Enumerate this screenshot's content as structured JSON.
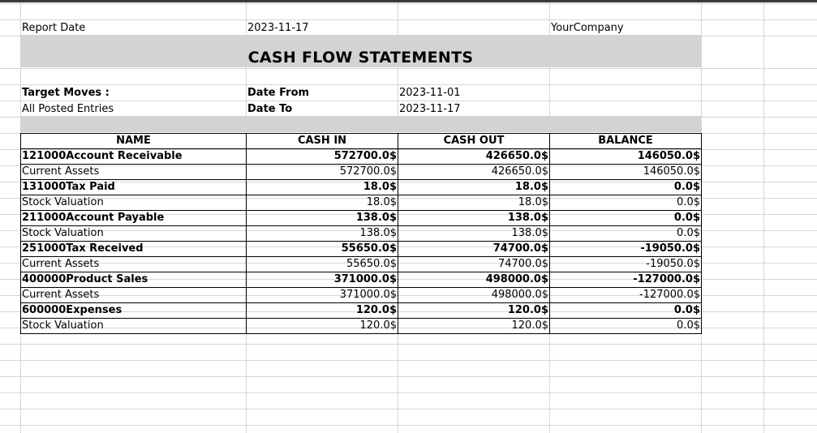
{
  "header": {
    "report_date_label": "Report Date",
    "report_date_value": "2023-11-17",
    "company": "YourCompany",
    "title": "CASH FLOW STATEMENTS",
    "target_moves_label": "Target Moves :",
    "target_moves_value": "All Posted Entries",
    "date_from_label": "Date From",
    "date_from_value": "2023-11-01",
    "date_to_label": "Date To",
    "date_to_value": "2023-11-17"
  },
  "table": {
    "columns": [
      "NAME",
      "CASH IN",
      "CASH OUT",
      "BALANCE"
    ],
    "rows": [
      {
        "name": "121000Account Receivable",
        "cash_in": "572700.0$",
        "cash_out": "426650.0$",
        "balance": "146050.0$",
        "bold": true
      },
      {
        "name": "Current Assets",
        "cash_in": "572700.0$",
        "cash_out": "426650.0$",
        "balance": "146050.0$",
        "bold": false
      },
      {
        "name": "131000Tax Paid",
        "cash_in": "18.0$",
        "cash_out": "18.0$",
        "balance": "0.0$",
        "bold": true
      },
      {
        "name": "Stock Valuation",
        "cash_in": "18.0$",
        "cash_out": "18.0$",
        "balance": "0.0$",
        "bold": false
      },
      {
        "name": "211000Account Payable",
        "cash_in": "138.0$",
        "cash_out": "138.0$",
        "balance": "0.0$",
        "bold": true
      },
      {
        "name": "Stock Valuation",
        "cash_in": "138.0$",
        "cash_out": "138.0$",
        "balance": "0.0$",
        "bold": false
      },
      {
        "name": "251000Tax Received",
        "cash_in": "55650.0$",
        "cash_out": "74700.0$",
        "balance": "-19050.0$",
        "bold": true
      },
      {
        "name": "Current Assets",
        "cash_in": "55650.0$",
        "cash_out": "74700.0$",
        "balance": "-19050.0$",
        "bold": false
      },
      {
        "name": "400000Product Sales",
        "cash_in": "371000.0$",
        "cash_out": "498000.0$",
        "balance": "-127000.0$",
        "bold": true
      },
      {
        "name": "Current Assets",
        "cash_in": "371000.0$",
        "cash_out": "498000.0$",
        "balance": "-127000.0$",
        "bold": false
      },
      {
        "name": "600000Expenses",
        "cash_in": "120.0$",
        "cash_out": "120.0$",
        "balance": "0.0$",
        "bold": true
      },
      {
        "name": "Stock Valuation",
        "cash_in": "120.0$",
        "cash_out": "120.0$",
        "balance": "0.0$",
        "bold": false
      }
    ]
  }
}
